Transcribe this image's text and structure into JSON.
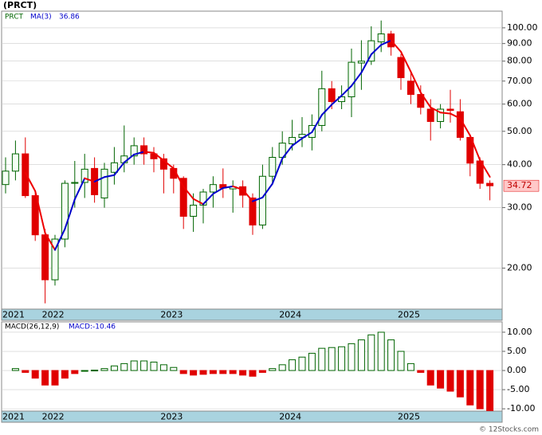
{
  "chart_data": [
    {
      "type": "candlestick",
      "title": "(PRCT)",
      "log_scale": true,
      "grid": true,
      "categories": [
        "2021",
        null,
        null,
        null,
        "2022",
        null,
        null,
        null,
        null,
        null,
        null,
        null,
        null,
        null,
        null,
        null,
        "2023",
        null,
        null,
        null,
        null,
        null,
        null,
        null,
        null,
        null,
        null,
        null,
        "2024",
        null,
        null,
        null,
        null,
        null,
        null,
        null,
        null,
        null,
        null,
        null,
        "2025",
        null,
        null,
        null,
        null,
        null,
        null,
        null,
        null,
        null
      ],
      "series": [
        {
          "name": "PRCT",
          "up_color": "#006400",
          "down_color": "#e00000",
          "open": [
            35,
            38.3,
            43,
            32.5,
            25,
            18.5,
            24.3,
            35.3,
            35.5,
            39,
            32,
            38,
            40.5,
            42.4,
            45.4,
            43,
            41.6,
            39,
            36.5,
            28.3,
            30.5,
            33.3,
            35,
            34,
            34.5,
            32,
            26.7,
            37,
            42,
            46,
            48,
            48,
            52,
            66.5,
            61,
            63,
            79,
            80,
            91,
            96,
            82,
            70,
            64,
            58,
            53.4,
            58,
            57,
            48,
            41,
            35.3
          ],
          "high": [
            42,
            47,
            48,
            33.5,
            26,
            25,
            36,
            41,
            43,
            42,
            40.5,
            45,
            52,
            48,
            48,
            45,
            43,
            40,
            37,
            33,
            34,
            37,
            39,
            36,
            36,
            33,
            40,
            45,
            50,
            54,
            55,
            56,
            75,
            70,
            68,
            87,
            92,
            101,
            105,
            98,
            84,
            74,
            68,
            62,
            60,
            66,
            62,
            49,
            42,
            36
          ],
          "low": [
            33,
            36,
            32,
            24,
            15.8,
            17.8,
            23,
            30,
            32,
            31,
            30,
            35,
            38,
            40,
            40,
            38,
            33,
            33,
            26,
            25.5,
            27,
            30,
            32,
            29,
            30,
            25,
            26,
            35,
            40,
            44,
            45,
            44,
            50,
            58,
            58,
            55,
            66,
            78,
            85,
            83,
            66,
            60,
            56,
            47,
            51,
            53,
            47,
            37,
            34,
            31.5
          ],
          "close": [
            38.3,
            43,
            32.5,
            25,
            18.5,
            24.3,
            35.3,
            35.5,
            38.8,
            32.7,
            38.8,
            40.5,
            42.4,
            45.4,
            43,
            41.6,
            38.8,
            36.5,
            28.3,
            30.5,
            33.3,
            35,
            34.2,
            34.5,
            32.6,
            26.7,
            37,
            42,
            46.2,
            48,
            49,
            52,
            66.5,
            61,
            63,
            79.4,
            80,
            91.7,
            96,
            88,
            71.6,
            64,
            58.7,
            53.4,
            58,
            57.5,
            48,
            40.4,
            35.3,
            34.72
          ]
        },
        {
          "name": "MA(3)",
          "color": "#0000cc",
          "down_color": "#ee0000",
          "values": [
            null,
            null,
            37.9,
            33.5,
            25.3,
            22.6,
            26,
            31.7,
            36.5,
            35.7,
            36.8,
            37.3,
            40.6,
            42.8,
            43.6,
            43.3,
            41.1,
            39,
            34.5,
            31.8,
            30.7,
            32.9,
            34.2,
            34.6,
            33.8,
            31.3,
            32.1,
            35.2,
            41.7,
            45.4,
            47.7,
            49.7,
            55.8,
            59.8,
            63.5,
            67.8,
            74.1,
            83.7,
            89.2,
            91.9,
            85.2,
            74.5,
            64.8,
            58.7,
            56.7,
            56.3,
            54.5,
            48.6,
            41.2,
            36.86
          ]
        }
      ],
      "ylim": [
        15.2,
        111.8
      ],
      "yticks": [
        {
          "value": 20,
          "label": "20.00"
        },
        {
          "value": 30,
          "label": "30.00"
        },
        {
          "value": 40,
          "label": "40.00"
        },
        {
          "value": 50,
          "label": "50.00"
        },
        {
          "value": 60,
          "label": "60.00"
        },
        {
          "value": 70,
          "label": "70.00"
        },
        {
          "value": 80,
          "label": "80.00"
        },
        {
          "value": 90,
          "label": "90.00"
        },
        {
          "value": 100,
          "label": "100.00"
        }
      ]
    },
    {
      "type": "bar",
      "title": "MACD(26,12,9)",
      "annotation": "MACD:-10.46",
      "grid": true,
      "categories": [
        "2021",
        null,
        null,
        null,
        "2022",
        null,
        null,
        null,
        null,
        null,
        null,
        null,
        null,
        null,
        null,
        null,
        "2023",
        null,
        null,
        null,
        null,
        null,
        null,
        null,
        null,
        null,
        null,
        null,
        "2024",
        null,
        null,
        null,
        null,
        null,
        null,
        null,
        null,
        null,
        null,
        null,
        "2025",
        null,
        null,
        null,
        null,
        null,
        null,
        null,
        null,
        null
      ],
      "up_color": "#006400",
      "down_color": "#e00000",
      "values": [
        null,
        0.5,
        -0.5,
        -2,
        -3.8,
        -3.8,
        -2,
        -0.8,
        0,
        0.1,
        0.5,
        1.2,
        1.8,
        2.5,
        2.5,
        2.2,
        1.5,
        0.8,
        -0.8,
        -1.2,
        -1,
        -0.8,
        -0.8,
        -0.8,
        -1.2,
        -1.5,
        -0.5,
        0.5,
        1.5,
        2.8,
        3.5,
        4.5,
        5.8,
        6,
        6.2,
        7,
        8,
        9.3,
        10,
        8,
        5,
        1.8,
        -0.5,
        -3.8,
        -4.6,
        -5.4,
        -6.9,
        -9,
        -10,
        -10.46
      ],
      "ylim": [
        -10.6,
        12.7
      ],
      "yticks": [
        {
          "value": -10,
          "label": "-10.00"
        },
        {
          "value": -5,
          "label": "-5.00"
        },
        {
          "value": 0,
          "label": "0.00"
        },
        {
          "value": 5,
          "label": "5.00"
        },
        {
          "value": 10,
          "label": "10.00"
        }
      ]
    }
  ],
  "footer": "© 12Stocks.com"
}
